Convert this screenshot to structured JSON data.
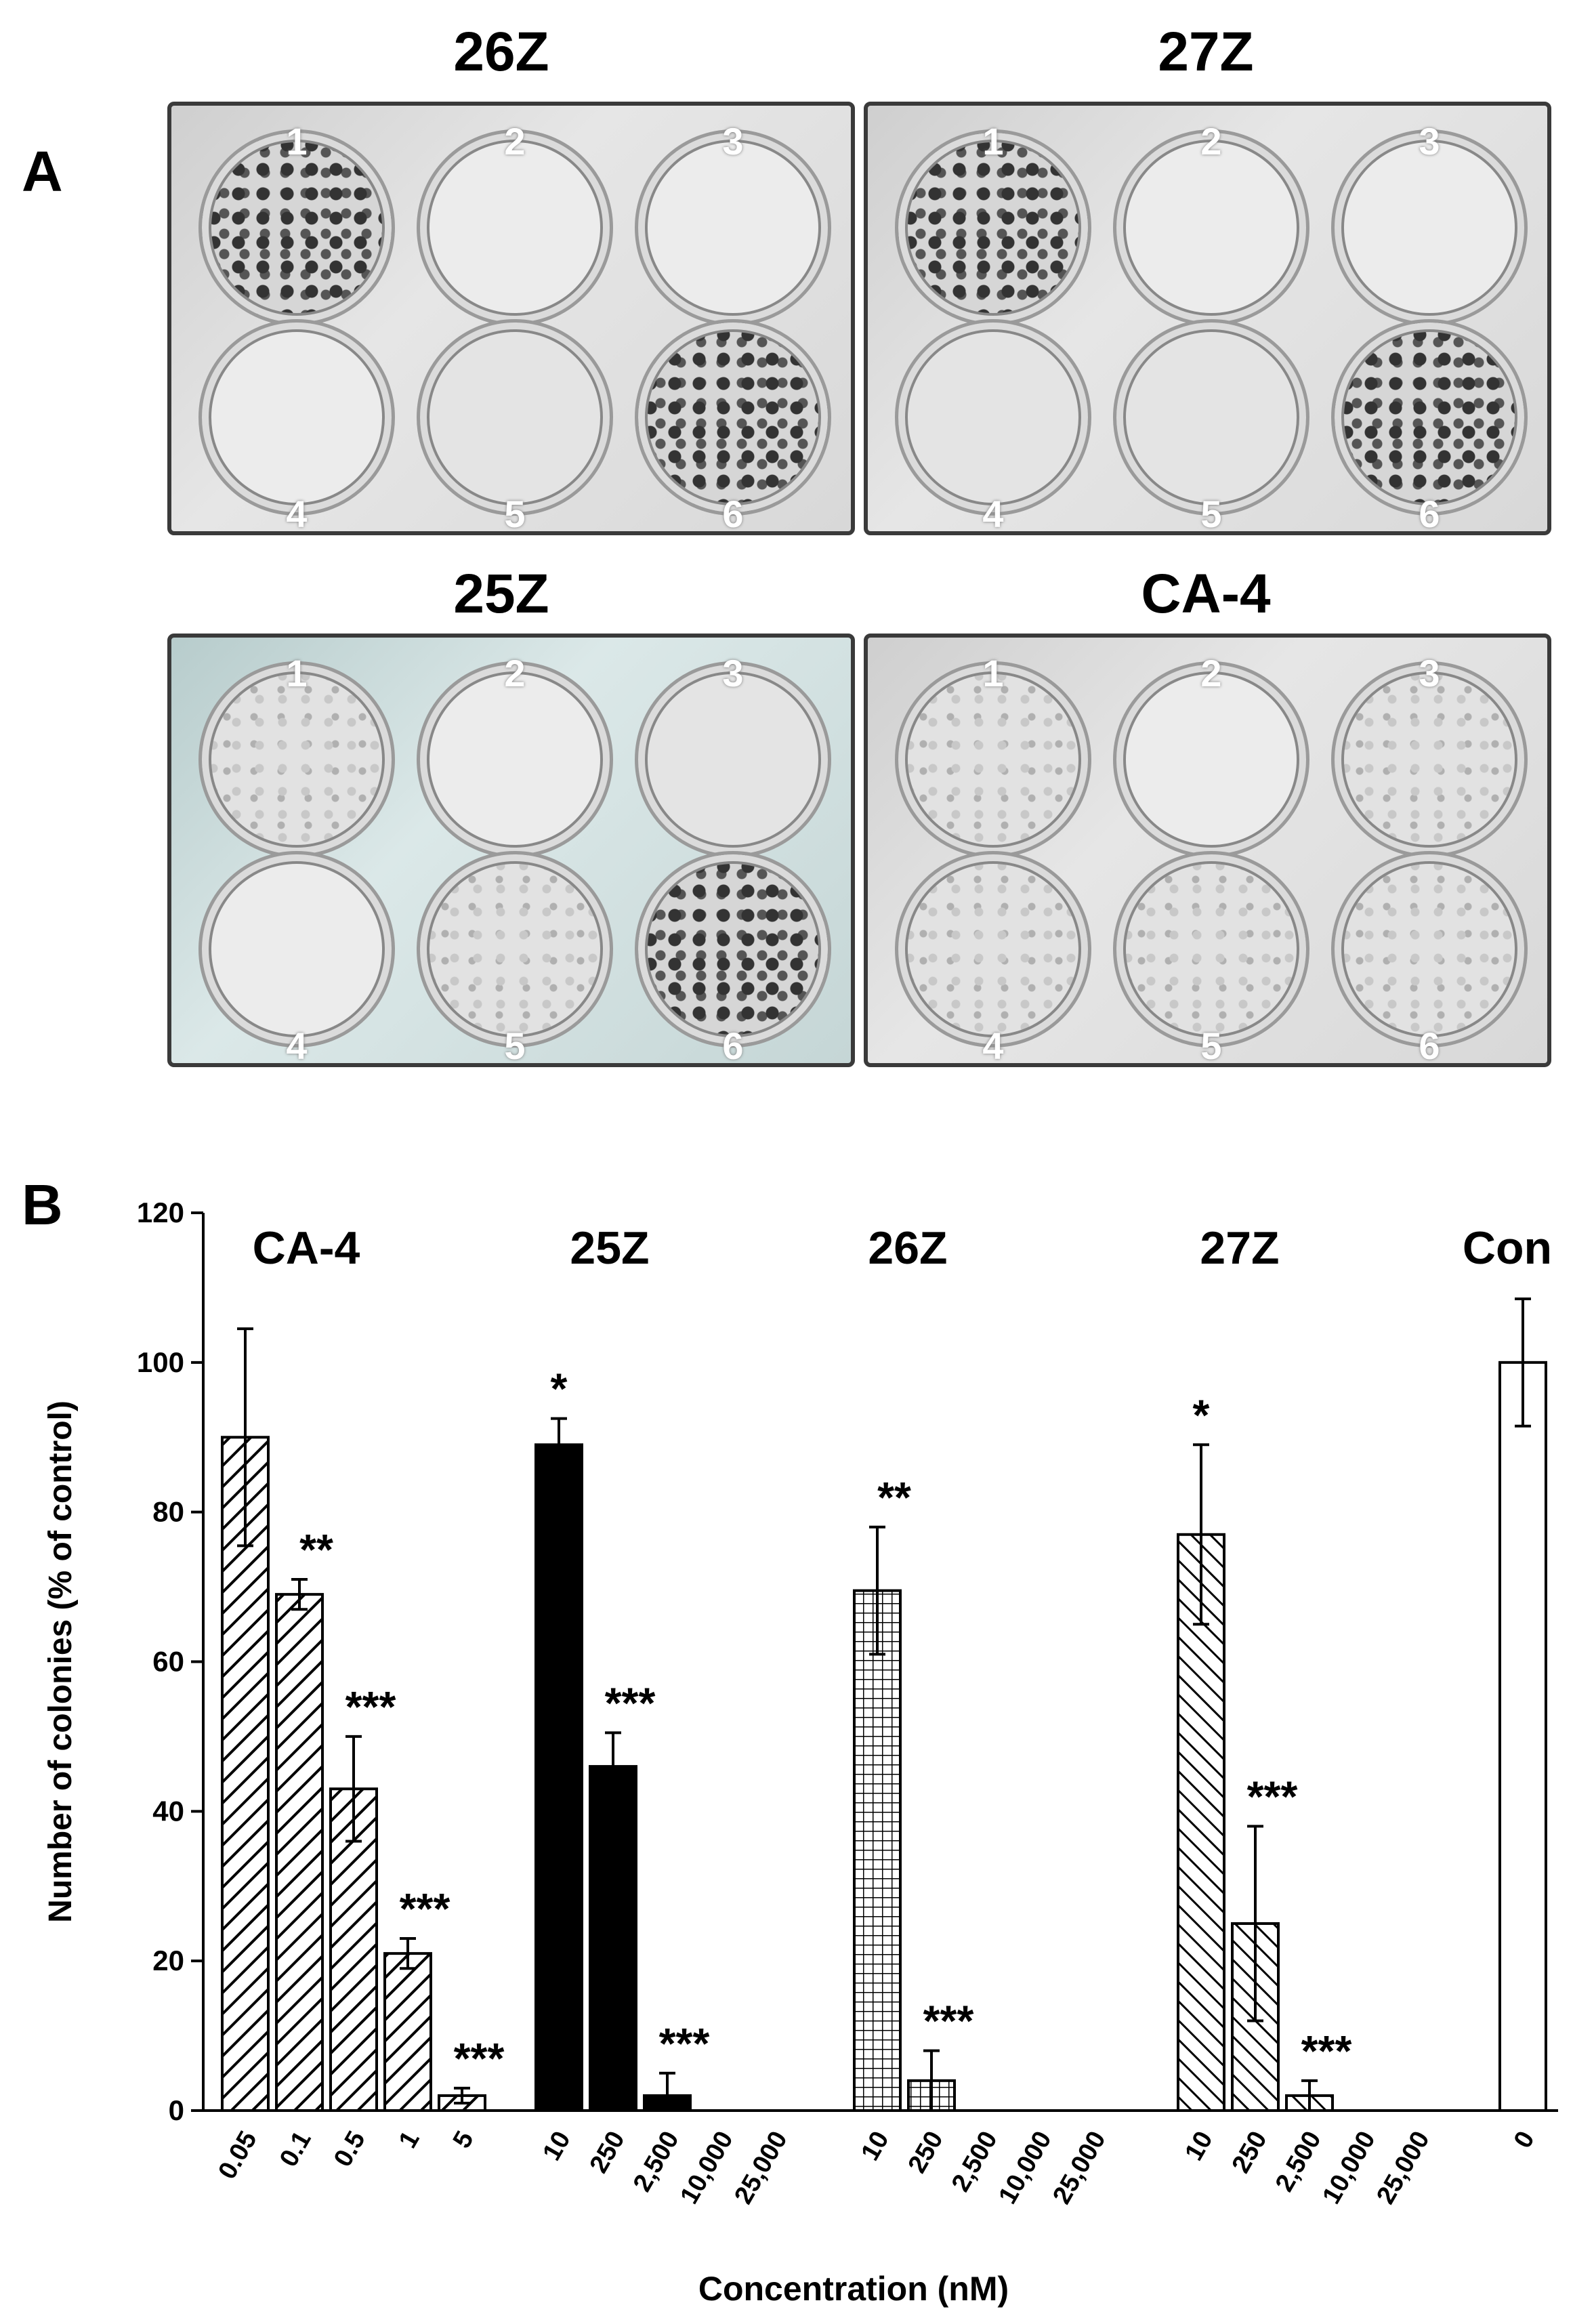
{
  "panel_a": {
    "label": "A",
    "plates": [
      {
        "title": "26Z",
        "style": "gray",
        "wells": [
          {
            "n": "1",
            "density": "dense"
          },
          {
            "n": "2",
            "density": "empty"
          },
          {
            "n": "3",
            "density": "empty"
          },
          {
            "n": "4",
            "density": "empty"
          },
          {
            "n": "5",
            "density": "light"
          },
          {
            "n": "6",
            "density": "dense"
          }
        ]
      },
      {
        "title": "27Z",
        "style": "gray",
        "wells": [
          {
            "n": "1",
            "density": "dense"
          },
          {
            "n": "2",
            "density": "empty"
          },
          {
            "n": "3",
            "density": "empty"
          },
          {
            "n": "4",
            "density": "light"
          },
          {
            "n": "5",
            "density": "light"
          },
          {
            "n": "6",
            "density": "dense"
          }
        ]
      },
      {
        "title": "25Z",
        "style": "teal",
        "wells": [
          {
            "n": "1",
            "density": "medium"
          },
          {
            "n": "2",
            "density": "empty"
          },
          {
            "n": "3",
            "density": "light"
          },
          {
            "n": "4",
            "density": "empty"
          },
          {
            "n": "5",
            "density": "medium"
          },
          {
            "n": "6",
            "density": "dense"
          }
        ]
      },
      {
        "title": "CA-4",
        "style": "gray",
        "wells": [
          {
            "n": "1",
            "density": "medium"
          },
          {
            "n": "2",
            "density": "empty"
          },
          {
            "n": "3",
            "density": "medium"
          },
          {
            "n": "4",
            "density": "medium"
          },
          {
            "n": "5",
            "density": "medium"
          },
          {
            "n": "6",
            "density": "medium"
          }
        ]
      }
    ]
  },
  "panel_b": {
    "label": "B"
  },
  "chart_data": {
    "type": "bar",
    "xlabel": "Concentration (nM)",
    "ylabel": "Number of colonies (% of control)",
    "ylim": [
      0,
      120
    ],
    "yticks": [
      0,
      20,
      40,
      60,
      80,
      100,
      120
    ],
    "groups": [
      {
        "name": "CA-4",
        "fill": "diag-right",
        "bars": [
          {
            "x": "0.05",
            "value": 90,
            "error": 14.5,
            "sig": ""
          },
          {
            "x": "0.1",
            "value": 69,
            "error": 2,
            "sig": "**"
          },
          {
            "x": "0.5",
            "value": 43,
            "error": 7,
            "sig": "***"
          },
          {
            "x": "1",
            "value": 21,
            "error": 2,
            "sig": "***"
          },
          {
            "x": "5",
            "value": 2,
            "error": 1,
            "sig": "***"
          }
        ]
      },
      {
        "name": "25Z",
        "fill": "solid",
        "bars": [
          {
            "x": "10",
            "value": 89,
            "error": 3.5,
            "sig": "*"
          },
          {
            "x": "250",
            "value": 46,
            "error": 4.5,
            "sig": "***"
          },
          {
            "x": "2,500",
            "value": 2,
            "error": 3,
            "sig": "***"
          },
          {
            "x": "10,000",
            "value": 0,
            "error": 0,
            "sig": ""
          },
          {
            "x": "25,000",
            "value": 0,
            "error": 0,
            "sig": ""
          }
        ]
      },
      {
        "name": "26Z",
        "fill": "grid",
        "bars": [
          {
            "x": "10",
            "value": 69.5,
            "error": 8.5,
            "sig": "**"
          },
          {
            "x": "250",
            "value": 4,
            "error": 4,
            "sig": "***"
          },
          {
            "x": "2,500",
            "value": 0,
            "error": 0,
            "sig": ""
          },
          {
            "x": "10,000",
            "value": 0,
            "error": 0,
            "sig": ""
          },
          {
            "x": "25,000",
            "value": 0,
            "error": 0,
            "sig": ""
          }
        ]
      },
      {
        "name": "27Z",
        "fill": "diag-left",
        "bars": [
          {
            "x": "10",
            "value": 77,
            "error": 12,
            "sig": "*"
          },
          {
            "x": "250",
            "value": 25,
            "error": 13,
            "sig": "***"
          },
          {
            "x": "2,500",
            "value": 2,
            "error": 2,
            "sig": "***"
          },
          {
            "x": "10,000",
            "value": 0,
            "error": 0,
            "sig": ""
          },
          {
            "x": "25,000",
            "value": 0,
            "error": 0,
            "sig": ""
          }
        ]
      },
      {
        "name": "Con",
        "fill": "white",
        "bars": [
          {
            "x": "0",
            "value": 100,
            "error": 8.5,
            "sig": ""
          }
        ]
      }
    ],
    "grid": false,
    "legend": "none"
  }
}
